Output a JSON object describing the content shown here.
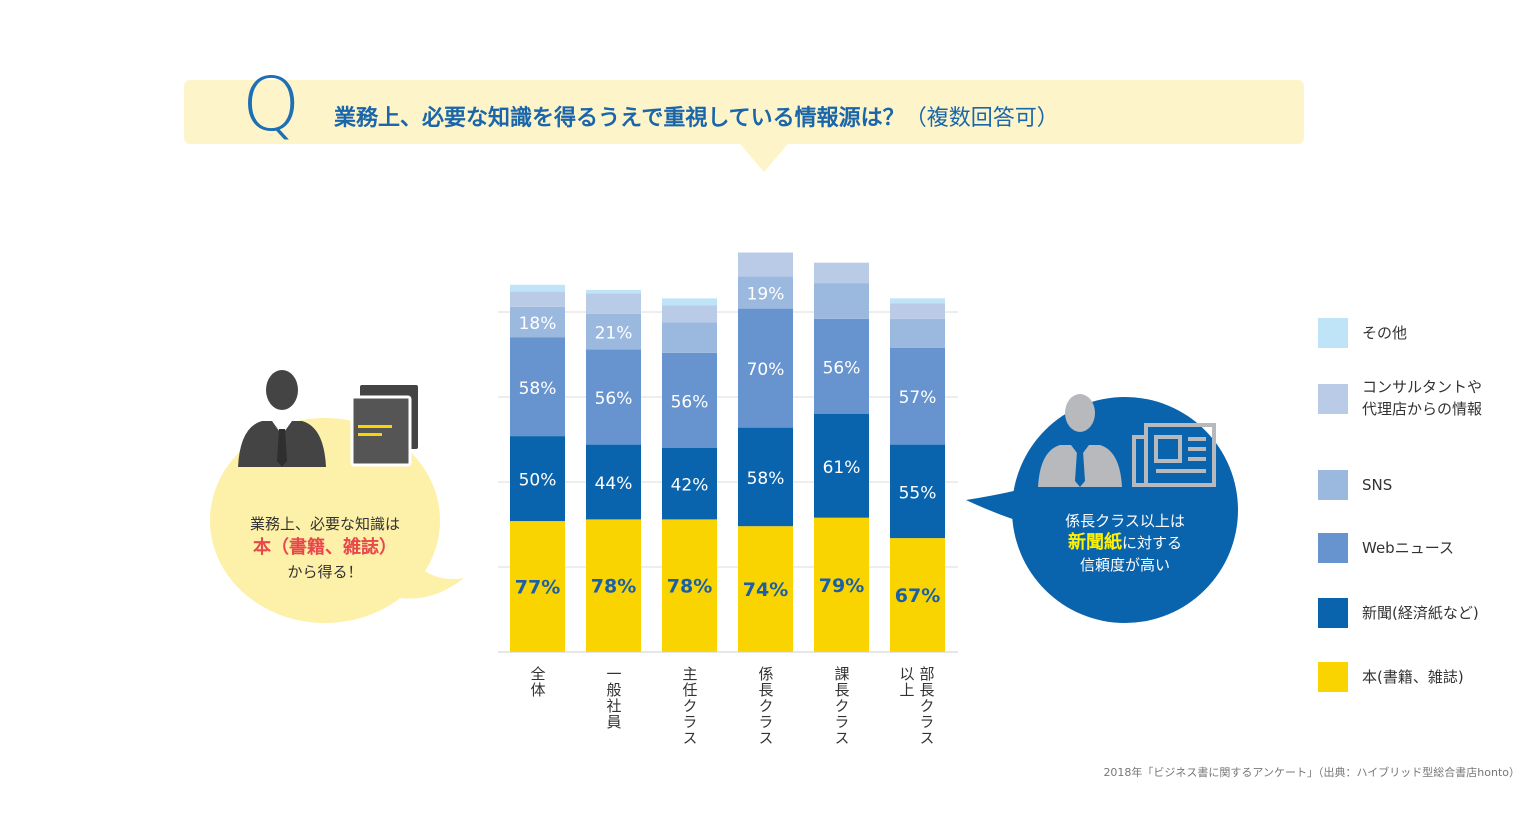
{
  "question": {
    "letter": "Q",
    "text": "業務上、必要な知識を得るうえで重視している情報源は？",
    "note": "（複数回答可）"
  },
  "left_callout": {
    "line1": "業務上、必要な知識は",
    "highlight": "本（書籍、雑誌）",
    "line3": "から得る！",
    "icons": [
      "businessman-icon",
      "books-icon"
    ]
  },
  "right_callout": {
    "line1": "係長クラス以上は",
    "highlight": "新聞紙",
    "line2_rest": "に対する",
    "line3": "信頼度が高い",
    "icons": [
      "businessman-icon",
      "newspaper-icon"
    ]
  },
  "legend": [
    {
      "label": "その他",
      "color": "#bfe3f7"
    },
    {
      "label": "コンサルタントや\n代理店からの情報",
      "color": "#b9cbe6"
    },
    {
      "label": "SNS",
      "color": "#9bb8de"
    },
    {
      "label": "Webニュース",
      "color": "#6794cf"
    },
    {
      "label": "新聞(経済紙など)",
      "color": "#0a64ad"
    },
    {
      "label": "本(書籍、雑誌)",
      "color": "#f9d400"
    }
  ],
  "source": "2018年「ビジネス書に関するアンケート」（出典：ハイブリッド型総合書店honto）",
  "chart_data": {
    "type": "bar",
    "stacked": true,
    "categories": [
      "全体",
      "一般社員",
      "主任クラス",
      "係長クラス",
      "課長クラス",
      "部長クラス以上"
    ],
    "series": [
      {
        "name": "本(書籍、雑誌)",
        "values": [
          77,
          78,
          78,
          74,
          79,
          67
        ],
        "color": "#f9d400",
        "label_color": "#1b5fa6",
        "show_labels": true,
        "bold": true
      },
      {
        "name": "新聞(経済紙など)",
        "values": [
          50,
          44,
          42,
          58,
          61,
          55
        ],
        "color": "#0a64ad",
        "label_color": "#ffffff",
        "show_labels": true
      },
      {
        "name": "Webニュース",
        "values": [
          58,
          56,
          56,
          70,
          56,
          57
        ],
        "color": "#6794cf",
        "label_color": "#ffffff",
        "show_labels": true
      },
      {
        "name": "SNS",
        "values": [
          18,
          21,
          18,
          19,
          21,
          17
        ],
        "color": "#9bb8de",
        "label_color": "#ffffff",
        "show_labels": [
          true,
          true,
          false,
          true,
          false,
          false
        ]
      },
      {
        "name": "コンサルタントや代理店からの情報",
        "values": [
          9,
          12,
          10,
          14,
          12,
          9
        ],
        "color": "#b9cbe6",
        "show_labels": false
      },
      {
        "name": "その他",
        "values": [
          4,
          2,
          4,
          0,
          0,
          3
        ],
        "color": "#bfe3f7",
        "show_labels": false
      }
    ],
    "category_labels": [
      "全体",
      "一般社員",
      "主任クラス",
      "係長クラス",
      "課長クラス",
      "部長クラス\n以上"
    ],
    "grid": true
  }
}
